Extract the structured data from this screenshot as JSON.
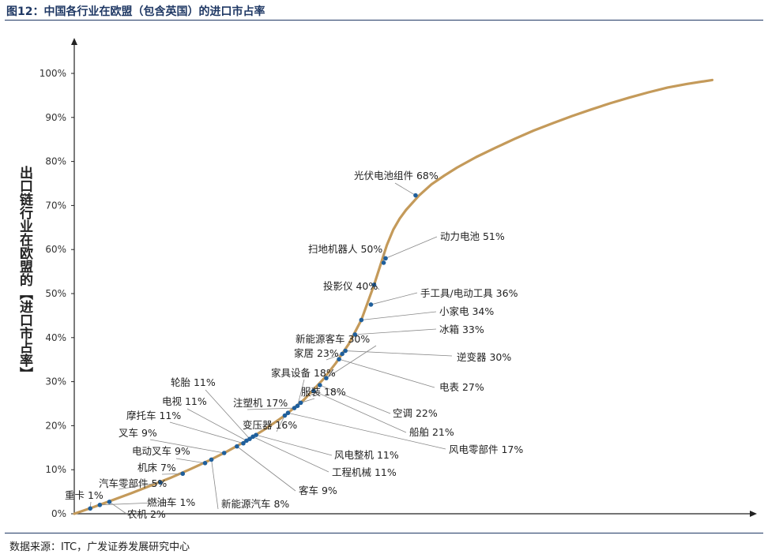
{
  "header": {
    "title": "图12：中国各行业在欧盟（包含英国）的进口市占率"
  },
  "footer": {
    "source": "数据来源：ITC，广发证券发展研究中心"
  },
  "colors": {
    "curve": "#c49a5a",
    "point": "#1f5f9c",
    "leader": "#888888",
    "axis": "#222222",
    "title": "#1f3864"
  },
  "chart_data": {
    "type": "line",
    "title": "图12：中国各行业在欧盟（包含英国）的进口市占率",
    "ylabel": "出口链行业在欧盟的【进口市占率】",
    "xlabel": "",
    "ylim": [
      0,
      100
    ],
    "yticks": [
      0,
      10,
      20,
      30,
      40,
      50,
      60,
      70,
      80,
      90,
      100
    ],
    "ytick_labels": [
      "0%",
      "10%",
      "20%",
      "30%",
      "40%",
      "50%",
      "60%",
      "70%",
      "80%",
      "90%",
      "100%"
    ],
    "grid": false,
    "curve": {
      "x": [
        0,
        3,
        6,
        9,
        12,
        15,
        18,
        21,
        24,
        27,
        30,
        33,
        36,
        39,
        41,
        43,
        45,
        47,
        49,
        50,
        51,
        52,
        54,
        56,
        58,
        60,
        63,
        66,
        69,
        72,
        75,
        78,
        81,
        84,
        87,
        90,
        93,
        96,
        100
      ],
      "y": [
        0,
        1.5,
        3.1,
        4.7,
        6.4,
        8.1,
        10.0,
        12.0,
        14.2,
        16.6,
        19.3,
        22.3,
        25.9,
        30.5,
        34.2,
        38.5,
        44.0,
        52.0,
        61.0,
        64.5,
        67.0,
        69.0,
        72.2,
        74.8,
        76.8,
        78.6,
        81.0,
        83.1,
        85.1,
        87.0,
        88.7,
        90.3,
        91.8,
        93.2,
        94.5,
        95.7,
        96.8,
        97.6,
        98.5
      ]
    },
    "points": [
      {
        "label": "重卡 1%",
        "x": 2.5,
        "y": 1.2
      },
      {
        "label": "燃油车 1%",
        "x": 4.0,
        "y": 2.0
      },
      {
        "label": "农机 2%",
        "x": 5.5,
        "y": 2.7
      },
      {
        "label": "汽车零部件 5%",
        "x": 13.5,
        "y": 7.1
      },
      {
        "label": "机床 7%",
        "x": 17.0,
        "y": 9.1
      },
      {
        "label": "电动叉车 9%",
        "x": 20.5,
        "y": 11.5
      },
      {
        "label": "新能源汽车 8%",
        "x": 21.5,
        "y": 12.3
      },
      {
        "label": "叉车 9%",
        "x": 23.5,
        "y": 13.8
      },
      {
        "label": "客车 9%",
        "x": 25.5,
        "y": 15.3
      },
      {
        "label": "摩托车 11%",
        "x": 26.5,
        "y": 16.0
      },
      {
        "label": "电视 11%",
        "x": 27.0,
        "y": 16.6
      },
      {
        "label": "轮胎 11%",
        "x": 27.5,
        "y": 17.0
      },
      {
        "label": "工程机械 11%",
        "x": 28.0,
        "y": 17.5
      },
      {
        "label": "风电整机 11%",
        "x": 28.5,
        "y": 17.9
      },
      {
        "label": "变压器 16%",
        "x": 33.0,
        "y": 22.3
      },
      {
        "label": "风电零部件 17%",
        "x": 33.5,
        "y": 22.9
      },
      {
        "label": "注塑机 17%",
        "x": 34.5,
        "y": 24.0
      },
      {
        "label": "家具设备 18%",
        "x": 35.0,
        "y": 24.5
      },
      {
        "label": "服装 18%",
        "x": 35.5,
        "y": 25.2
      },
      {
        "label": "船舶 21%",
        "x": 37.5,
        "y": 27.9
      },
      {
        "label": "空调 22%",
        "x": 38.5,
        "y": 29.2
      },
      {
        "label": "新能源客车 30%",
        "x": 39.5,
        "y": 30.8
      },
      {
        "label": "电表 27%",
        "x": 41.5,
        "y": 35.1
      },
      {
        "label": "家居 23%",
        "x": 42.0,
        "y": 36.3
      },
      {
        "label": "逆变器 30%",
        "x": 42.5,
        "y": 37.0
      },
      {
        "label": "冰箱 33%",
        "x": 44.0,
        "y": 40.7
      },
      {
        "label": "小家电 34%",
        "x": 45.0,
        "y": 44.0
      },
      {
        "label": "手工具/电动工具 36%",
        "x": 46.5,
        "y": 47.5
      },
      {
        "label": "投影仪 40%",
        "x": 47.0,
        "y": 52.0
      },
      {
        "label": "扫地机器人 50%",
        "x": 48.5,
        "y": 57.0
      },
      {
        "label": "动力电池 51%",
        "x": 48.8,
        "y": 58.0
      },
      {
        "label": "光伏电池组件 68%",
        "x": 53.5,
        "y": 72.3
      }
    ]
  }
}
